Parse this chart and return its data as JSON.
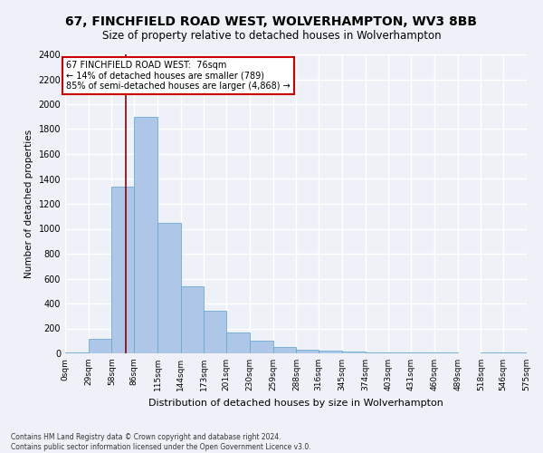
{
  "title": "67, FINCHFIELD ROAD WEST, WOLVERHAMPTON, WV3 8BB",
  "subtitle": "Size of property relative to detached houses in Wolverhampton",
  "xlabel": "Distribution of detached houses by size in Wolverhampton",
  "ylabel": "Number of detached properties",
  "footer_line1": "Contains HM Land Registry data © Crown copyright and database right 2024.",
  "footer_line2": "Contains public sector information licensed under the Open Government Licence v3.0.",
  "annotation_title": "67 FINCHFIELD ROAD WEST:  76sqm",
  "annotation_line1": "← 14% of detached houses are smaller (789)",
  "annotation_line2": "85% of semi-detached houses are larger (4,868) →",
  "property_size": 76,
  "bin_edges": [
    0,
    29,
    58,
    86,
    115,
    144,
    173,
    201,
    230,
    259,
    288,
    316,
    345,
    374,
    403,
    431,
    460,
    489,
    518,
    546,
    575
  ],
  "bar_heights": [
    10,
    120,
    1340,
    1900,
    1050,
    540,
    340,
    170,
    100,
    50,
    30,
    20,
    15,
    10,
    5,
    10,
    5,
    0,
    5,
    5
  ],
  "bar_color": "#aec6e8",
  "bar_edge_color": "#6aaad4",
  "marker_line_color": "#8b0000",
  "annotation_box_color": "#ffffff",
  "annotation_box_edge_color": "#cc0000",
  "background_color": "#eef2f8",
  "grid_color": "#ffffff",
  "ylim": [
    0,
    2400
  ],
  "yticks": [
    0,
    200,
    400,
    600,
    800,
    1000,
    1200,
    1400,
    1600,
    1800,
    2000,
    2200,
    2400
  ]
}
